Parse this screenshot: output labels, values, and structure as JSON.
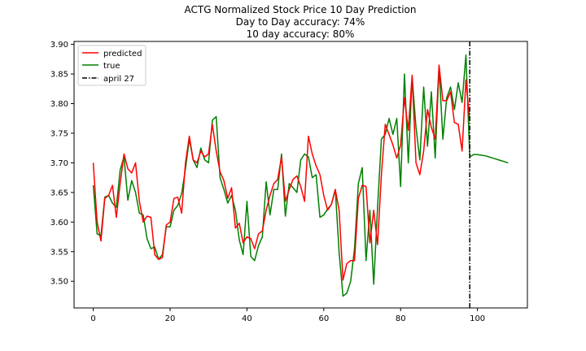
{
  "chart_data": {
    "type": "line",
    "title": [
      "ACTG Normalized Stock Price 10 Day Prediction",
      "Day to Day accuracy: 74%",
      "10 day accuracy: 80%"
    ],
    "xlabel": "",
    "ylabel": "",
    "xlim": [
      -5,
      113
    ],
    "ylim": [
      3.455,
      3.905
    ],
    "xticks": [
      0,
      20,
      40,
      60,
      80,
      100
    ],
    "yticks": [
      3.5,
      3.55,
      3.6,
      3.65,
      3.7,
      3.75,
      3.8,
      3.85,
      3.9
    ],
    "grid": false,
    "legend_position": "top-left",
    "series": [
      {
        "name": "predicted",
        "color": "#ff0000",
        "x": [
          0,
          1,
          2,
          3,
          4,
          5,
          6,
          7,
          8,
          9,
          10,
          11,
          12,
          13,
          14,
          15,
          16,
          17,
          18,
          19,
          20,
          21,
          22,
          23,
          24,
          25,
          26,
          27,
          28,
          29,
          30,
          31,
          32,
          33,
          34,
          35,
          36,
          37,
          38,
          39,
          40,
          41,
          42,
          43,
          44,
          45,
          46,
          47,
          48,
          49,
          50,
          51,
          52,
          53,
          54,
          55,
          56,
          57,
          58,
          59,
          60,
          61,
          62,
          63,
          64,
          65,
          66,
          67,
          68,
          69,
          70,
          71,
          72,
          73,
          74,
          75,
          76,
          77,
          78,
          79,
          80,
          81,
          82,
          83,
          84,
          85,
          86,
          87,
          88,
          89,
          90,
          91,
          92,
          93,
          94,
          95,
          96,
          97,
          98
        ],
        "y": [
          3.7,
          3.6,
          3.568,
          3.64,
          3.645,
          3.662,
          3.608,
          3.665,
          3.715,
          3.69,
          3.683,
          3.7,
          3.635,
          3.6,
          3.61,
          3.608,
          3.545,
          3.537,
          3.54,
          3.595,
          3.6,
          3.64,
          3.642,
          3.615,
          3.7,
          3.745,
          3.705,
          3.7,
          3.72,
          3.71,
          3.715,
          3.765,
          3.72,
          3.685,
          3.67,
          3.64,
          3.658,
          3.59,
          3.598,
          3.565,
          3.575,
          3.572,
          3.555,
          3.58,
          3.585,
          3.62,
          3.645,
          3.665,
          3.672,
          3.71,
          3.635,
          3.655,
          3.672,
          3.678,
          3.66,
          3.635,
          3.745,
          3.715,
          3.695,
          3.68,
          3.645,
          3.62,
          3.63,
          3.655,
          3.62,
          3.502,
          3.53,
          3.535,
          3.535,
          3.64,
          3.662,
          3.66,
          3.565,
          3.62,
          3.562,
          3.68,
          3.765,
          3.748,
          3.73,
          3.708,
          3.73,
          3.81,
          3.755,
          3.848,
          3.7,
          3.68,
          3.72,
          3.79,
          3.76,
          3.74,
          3.865,
          3.805,
          3.805,
          3.82,
          3.768,
          3.765,
          3.72,
          3.84,
          3.77
        ]
      },
      {
        "name": "true",
        "color": "#008000",
        "x": [
          0,
          1,
          2,
          3,
          4,
          5,
          6,
          7,
          8,
          9,
          10,
          11,
          12,
          13,
          14,
          15,
          16,
          17,
          18,
          19,
          20,
          21,
          22,
          23,
          24,
          25,
          26,
          27,
          28,
          29,
          30,
          31,
          32,
          33,
          34,
          35,
          36,
          37,
          38,
          39,
          40,
          41,
          42,
          43,
          44,
          45,
          46,
          47,
          48,
          49,
          50,
          51,
          52,
          53,
          54,
          55,
          56,
          57,
          58,
          59,
          60,
          61,
          62,
          63,
          64,
          65,
          66,
          67,
          68,
          69,
          70,
          71,
          72,
          73,
          74,
          75,
          76,
          77,
          78,
          79,
          80,
          81,
          82,
          83,
          84,
          85,
          86,
          87,
          88,
          89,
          90,
          91,
          92,
          93,
          94,
          95,
          96,
          97,
          98,
          99,
          100,
          101,
          102,
          103,
          104,
          105,
          106,
          107,
          108
        ],
        "y": [
          3.662,
          3.58,
          3.577,
          3.642,
          3.645,
          3.632,
          3.625,
          3.688,
          3.71,
          3.637,
          3.67,
          3.65,
          3.615,
          3.612,
          3.572,
          3.555,
          3.558,
          3.537,
          3.545,
          3.592,
          3.592,
          3.62,
          3.628,
          3.648,
          3.69,
          3.74,
          3.705,
          3.692,
          3.725,
          3.705,
          3.7,
          3.772,
          3.778,
          3.675,
          3.655,
          3.632,
          3.645,
          3.62,
          3.57,
          3.545,
          3.635,
          3.542,
          3.535,
          3.56,
          3.575,
          3.668,
          3.612,
          3.655,
          3.655,
          3.715,
          3.61,
          3.665,
          3.658,
          3.65,
          3.705,
          3.715,
          3.71,
          3.675,
          3.68,
          3.608,
          3.612,
          3.622,
          3.63,
          3.655,
          3.548,
          3.475,
          3.48,
          3.5,
          3.555,
          3.665,
          3.692,
          3.535,
          3.62,
          3.495,
          3.625,
          3.74,
          3.748,
          3.775,
          3.748,
          3.775,
          3.66,
          3.85,
          3.7,
          3.845,
          3.76,
          3.705,
          3.828,
          3.728,
          3.82,
          3.708,
          3.862,
          3.74,
          3.81,
          3.828,
          3.79,
          3.835,
          3.802,
          3.882,
          3.71,
          3.714,
          3.714,
          3.713,
          3.712,
          3.71,
          3.708,
          3.706,
          3.704,
          3.702,
          3.7
        ]
      }
    ],
    "vline": {
      "x": 98,
      "name": "april 27",
      "color": "#000000",
      "style": "dashdot"
    }
  }
}
